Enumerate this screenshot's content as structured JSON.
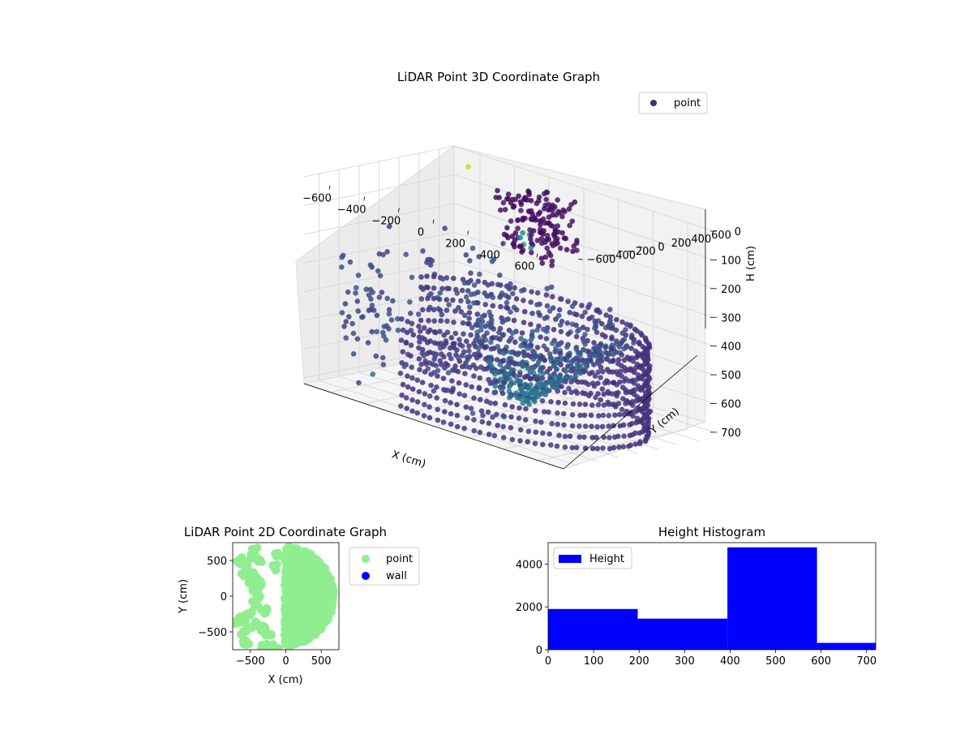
{
  "chart_data": [
    {
      "type": "scatter",
      "projection": "3d",
      "title": "LiDAR Point 3D Coordinate Graph",
      "xlabel": "X (cm)",
      "ylabel": "Y (cm)",
      "zlabel": "H (cm)",
      "xlim": [
        -750,
        750
      ],
      "ylim": [
        -750,
        750
      ],
      "zlim": [
        0,
        720
      ],
      "z_inverted": true,
      "xticks": [
        "−600",
        "−400",
        "−200",
        "0",
        "200",
        "400",
        "600"
      ],
      "yticks": [
        "−600",
        "−400",
        "−200",
        "0",
        "200",
        "400",
        "600"
      ],
      "zticks": [
        "0",
        "100",
        "200",
        "300",
        "400",
        "500",
        "600",
        "700"
      ],
      "colormap": "viridis",
      "legend": {
        "location": "top-right",
        "entries": [
          "point"
        ]
      },
      "series": [
        {
          "name": "point",
          "color": "#472d7b",
          "description_points": {
            "ring_radius_cm": 700,
            "ring_angle_deg_range": [
              -110,
              160
            ],
            "height_range_cm": [
              400,
              720
            ],
            "interior_ground_height_cm": [
              300,
              720
            ],
            "cluster_near_origin": {
              "x": [
                -200,
                100
              ],
              "y": [
                200,
                500
              ],
              "h": [
                0,
                200
              ]
            }
          }
        }
      ]
    },
    {
      "type": "scatter",
      "title": "LiDAR Point 2D Coordinate Graph",
      "xlabel": "X (cm)",
      "ylabel": "Y (cm)",
      "xlim": [
        -750,
        750
      ],
      "ylim": [
        -750,
        750
      ],
      "xticks": [
        "−500",
        "0",
        "500"
      ],
      "yticks": [
        "−500",
        "0",
        "500"
      ],
      "legend": {
        "location": "outside-right",
        "entries": [
          "point",
          "wall"
        ]
      },
      "series": [
        {
          "name": "point",
          "color": "#90ee90"
        },
        {
          "name": "wall",
          "color": "#0000ff"
        }
      ]
    },
    {
      "type": "bar",
      "subtype": "histogram",
      "title": "Height Histogram",
      "xlabel": "",
      "ylabel": "",
      "bin_edges": [
        0,
        197,
        394,
        591,
        720
      ],
      "values": [
        1900,
        1450,
        4780,
        320
      ],
      "xlim": [
        0,
        720
      ],
      "ylim": [
        0,
        5000
      ],
      "xticks": [
        "0",
        "100",
        "200",
        "300",
        "400",
        "500",
        "600",
        "700"
      ],
      "yticks": [
        "0",
        "2000",
        "4000"
      ],
      "legend": {
        "location": "top-left",
        "entries": [
          "Height"
        ]
      },
      "series": [
        {
          "name": "Height",
          "color": "#0000ff"
        }
      ]
    }
  ]
}
